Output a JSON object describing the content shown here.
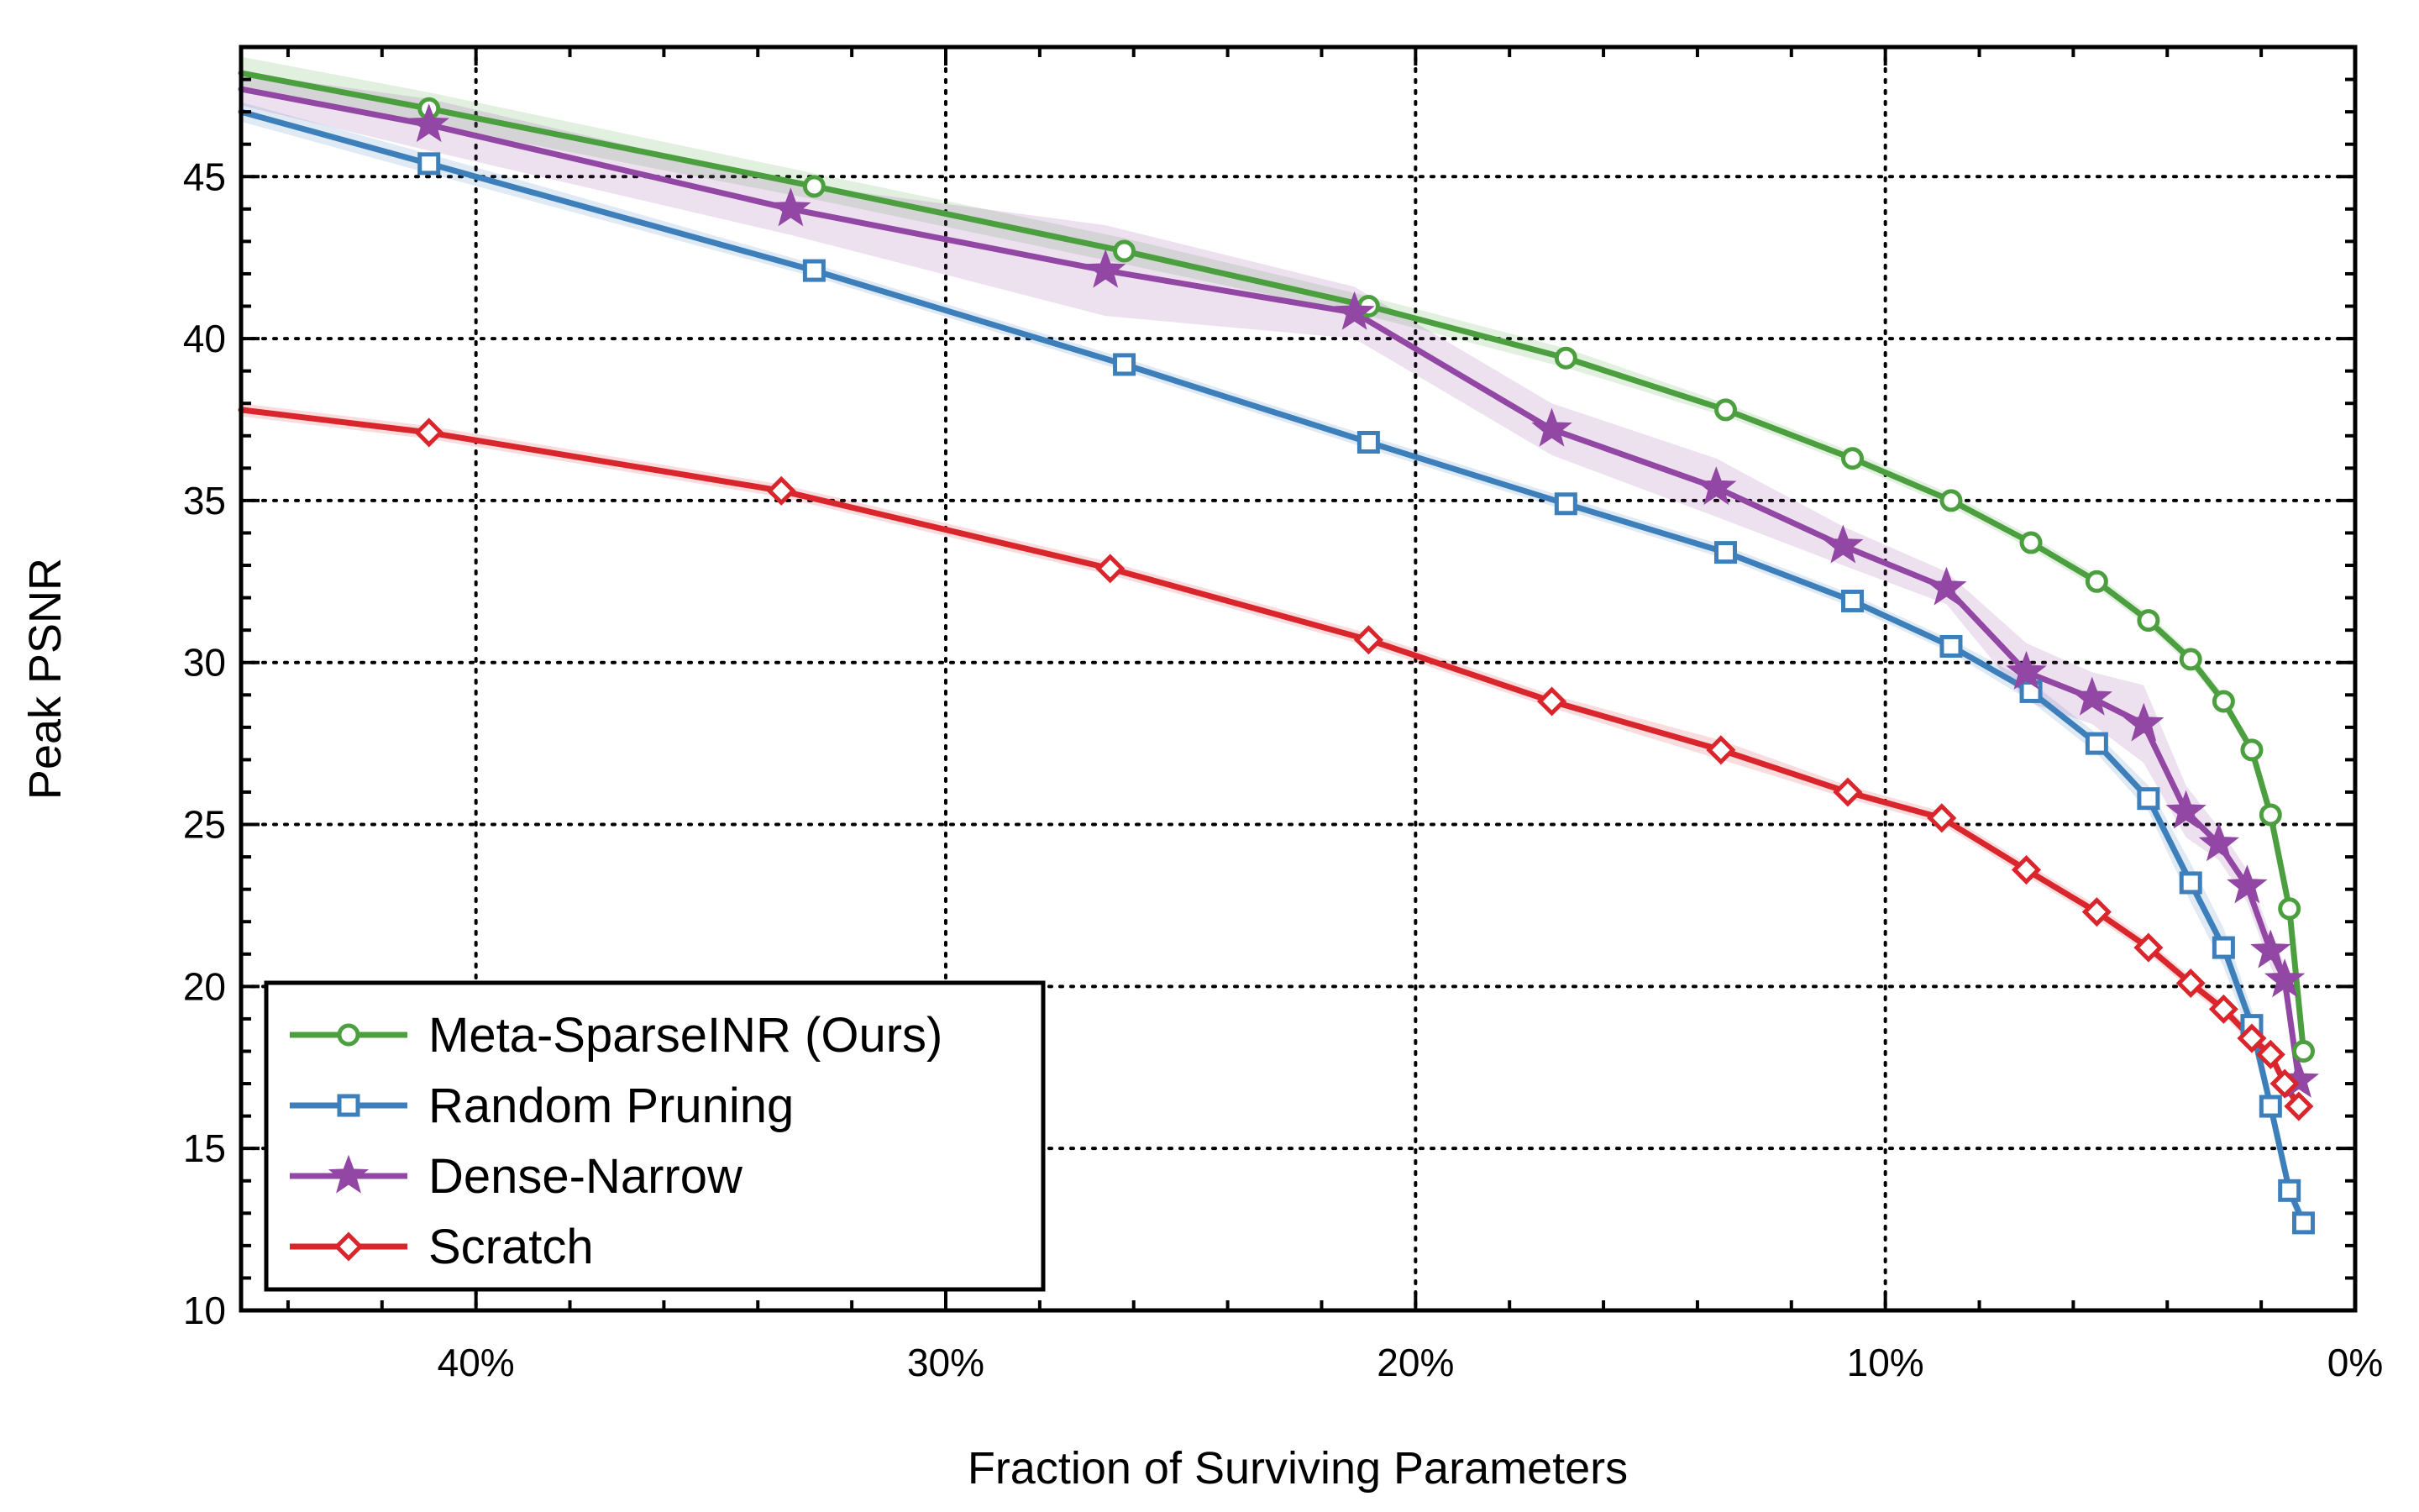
{
  "chart_data": {
    "type": "line",
    "title": "",
    "xlabel": "Fraction of Surviving Parameters",
    "ylabel": "Peak PSNR",
    "xlim": [
      45,
      0
    ],
    "ylim": [
      10,
      49
    ],
    "x_ticks": [
      40,
      30,
      20,
      10,
      0
    ],
    "x_tick_labels": [
      "40%",
      "30%",
      "20%",
      "10%",
      "0%"
    ],
    "y_ticks": [
      10,
      15,
      20,
      25,
      30,
      35,
      40,
      45
    ],
    "y_tick_labels": [
      "10",
      "15",
      "20",
      "25",
      "30",
      "35",
      "40",
      "45"
    ],
    "grid": true,
    "legend_position": "bottom-left",
    "series": [
      {
        "name": "Meta-SparseINR (Ours)",
        "color": "#4c9f3f",
        "marker": "circle",
        "x": [
          45,
          41,
          32.8,
          26.2,
          21,
          16.8,
          13.4,
          10.7,
          8.6,
          6.9,
          5.5,
          4.4,
          3.5,
          2.8,
          2.2,
          1.8,
          1.4,
          1.1
        ],
        "y": [
          48.2,
          47.1,
          44.7,
          42.7,
          41.0,
          39.4,
          37.8,
          36.3,
          35.0,
          33.7,
          32.5,
          31.3,
          30.1,
          28.8,
          27.3,
          25.3,
          22.4,
          18.0
        ],
        "band": [
          0.5,
          0.5,
          0.4,
          0.4,
          0.3,
          0.3,
          0.2,
          0.2,
          0.2,
          0.2,
          0.2,
          0.2,
          0.2,
          0.2,
          0.2,
          0.2,
          0.3,
          0.3
        ]
      },
      {
        "name": "Random Pruning",
        "color": "#3c7fba",
        "marker": "square",
        "x": [
          45,
          41,
          32.8,
          26.2,
          21,
          16.8,
          13.4,
          10.7,
          8.6,
          6.9,
          5.5,
          4.4,
          3.5,
          2.8,
          2.2,
          1.8,
          1.4,
          1.1
        ],
        "y": [
          47.0,
          45.4,
          42.1,
          39.2,
          36.8,
          34.9,
          33.4,
          31.9,
          30.5,
          29.1,
          27.5,
          25.8,
          23.2,
          21.2,
          18.8,
          16.3,
          13.7,
          12.7
        ],
        "band": [
          0.3,
          0.3,
          0.2,
          0.2,
          0.2,
          0.2,
          0.2,
          0.2,
          0.2,
          0.3,
          0.3,
          0.4,
          0.6,
          0.6,
          0.5,
          0.4,
          0.3,
          0.3
        ]
      },
      {
        "name": "Dense-Narrow",
        "color": "#9147a3",
        "marker": "star",
        "x": [
          45,
          41,
          33.3,
          26.6,
          21.3,
          17.1,
          13.6,
          10.9,
          8.7,
          7.0,
          5.6,
          4.5,
          3.6,
          2.9,
          2.3,
          1.8,
          1.5,
          1.2
        ],
        "y": [
          47.7,
          46.6,
          44.0,
          42.1,
          40.8,
          37.2,
          35.4,
          33.6,
          32.3,
          29.7,
          28.9,
          28.1,
          25.4,
          24.4,
          23.1,
          21.1,
          20.2,
          17.1
        ],
        "band": [
          0.5,
          0.8,
          0.8,
          1.4,
          0.8,
          0.8,
          0.9,
          0.6,
          0.5,
          0.9,
          0.8,
          1.2,
          0.8,
          0.5,
          0.5,
          0.5,
          0.5,
          0.3
        ]
      },
      {
        "name": "Scratch",
        "color": "#d9262c",
        "marker": "diamond",
        "x": [
          45,
          41,
          33.5,
          26.5,
          21,
          17.1,
          13.5,
          10.8,
          8.8,
          7.0,
          5.5,
          4.4,
          3.5,
          2.8,
          2.2,
          1.8,
          1.5,
          1.2
        ],
        "y": [
          37.8,
          37.1,
          35.3,
          32.9,
          30.7,
          28.8,
          27.3,
          26.0,
          25.2,
          23.6,
          22.3,
          21.2,
          20.1,
          19.3,
          18.4,
          17.9,
          17.0,
          16.3
        ],
        "band": [
          0.2,
          0.2,
          0.2,
          0.2,
          0.2,
          0.2,
          0.3,
          0.2,
          0.2,
          0.2,
          0.2,
          0.2,
          0.2,
          0.2,
          0.2,
          0.2,
          0.2,
          0.2
        ]
      }
    ]
  }
}
